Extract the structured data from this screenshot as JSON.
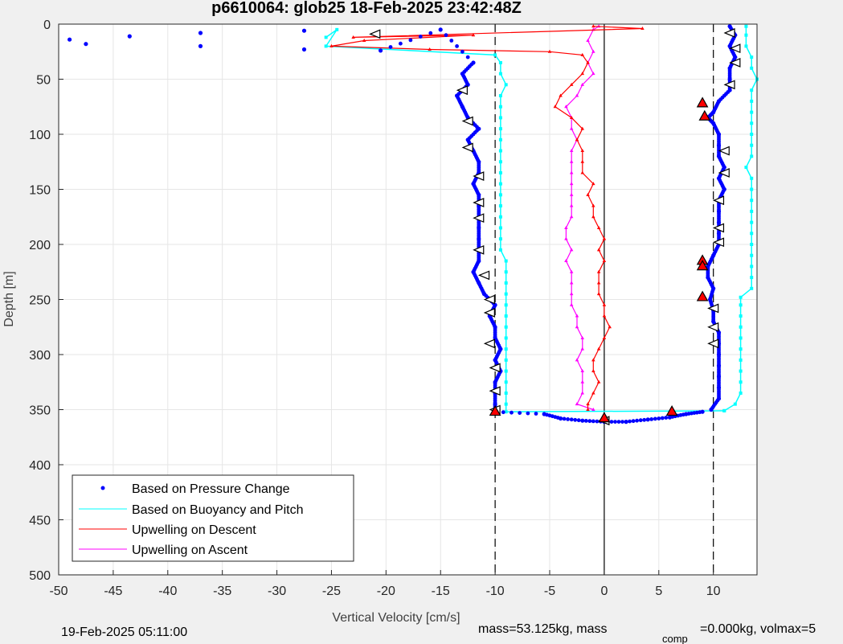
{
  "chart_data": {
    "type": "scatter",
    "title": "p6610064: glob25 18-Feb-2025 23:42:48Z",
    "xlabel": "Vertical Velocity [cm/s]",
    "ylabel": "Depth [m]",
    "xlim": [
      -50,
      14
    ],
    "ylim": [
      0,
      500
    ],
    "y_reversed": true,
    "grid": true,
    "x_ticks": [
      -50,
      -45,
      -40,
      -35,
      -30,
      -25,
      -20,
      -15,
      -10,
      -5,
      0,
      5,
      10
    ],
    "y_ticks": [
      0,
      50,
      100,
      150,
      200,
      250,
      300,
      350,
      400,
      450,
      500
    ],
    "reference_lines": [
      {
        "x": -10,
        "style": "dashed"
      },
      {
        "x": 10,
        "style": "dashed"
      },
      {
        "x": 0,
        "style": "solid"
      }
    ],
    "legend_position": "bottom-left",
    "series": [
      {
        "name": "Based on Pressure Change",
        "color": "#0000ff",
        "style": "points",
        "descent": [
          [
            -49,
            14
          ],
          [
            -47.5,
            18
          ],
          [
            -43.5,
            11
          ],
          [
            -37,
            8
          ],
          [
            -37,
            20
          ],
          [
            -27.5,
            6
          ],
          [
            -27.5,
            23
          ],
          [
            -20.5,
            24
          ],
          [
            -15,
            5
          ],
          [
            -12,
            35
          ],
          [
            -13,
            45
          ],
          [
            -12.5,
            55
          ],
          [
            -13.5,
            65
          ],
          [
            -13,
            75
          ],
          [
            -12.5,
            85
          ],
          [
            -11.5,
            95
          ],
          [
            -12.5,
            105
          ],
          [
            -12,
            115
          ],
          [
            -11.5,
            125
          ],
          [
            -11.5,
            135
          ],
          [
            -12,
            145
          ],
          [
            -11.5,
            155
          ],
          [
            -11.5,
            165
          ],
          [
            -11.5,
            175
          ],
          [
            -11.5,
            185
          ],
          [
            -11.5,
            195
          ],
          [
            -11.5,
            205
          ],
          [
            -11.5,
            215
          ],
          [
            -12,
            225
          ],
          [
            -11.5,
            235
          ],
          [
            -11,
            245
          ],
          [
            -10,
            255
          ],
          [
            -10.5,
            265
          ],
          [
            -10,
            275
          ],
          [
            -10,
            285
          ],
          [
            -9.5,
            295
          ],
          [
            -10,
            305
          ],
          [
            -9.5,
            315
          ],
          [
            -10,
            325
          ],
          [
            -10,
            335
          ],
          [
            -10,
            345
          ],
          [
            -10,
            352
          ],
          [
            -5.5,
            354
          ],
          [
            -4,
            358
          ],
          [
            -2,
            360
          ],
          [
            0,
            361
          ],
          [
            2,
            361
          ],
          [
            4,
            359
          ],
          [
            6,
            357
          ],
          [
            7.5,
            354
          ],
          [
            9,
            352
          ]
        ],
        "ascent": [
          [
            9.8,
            350
          ],
          [
            10.5,
            340
          ],
          [
            10.5,
            330
          ],
          [
            10.5,
            320
          ],
          [
            10.5,
            310
          ],
          [
            10.5,
            300
          ],
          [
            10.5,
            290
          ],
          [
            10.5,
            280
          ],
          [
            10,
            270
          ],
          [
            10,
            260
          ],
          [
            9.7,
            250
          ],
          [
            10,
            240
          ],
          [
            9.5,
            230
          ],
          [
            9.5,
            220
          ],
          [
            10,
            210
          ],
          [
            10.5,
            200
          ],
          [
            10.5,
            190
          ],
          [
            10.5,
            180
          ],
          [
            10.5,
            170
          ],
          [
            10.5,
            160
          ],
          [
            11,
            150
          ],
          [
            10.5,
            140
          ],
          [
            11,
            130
          ],
          [
            10.5,
            120
          ],
          [
            10.5,
            110
          ],
          [
            10.5,
            100
          ],
          [
            10,
            90
          ],
          [
            9.5,
            85
          ],
          [
            10,
            80
          ],
          [
            10.5,
            70
          ],
          [
            11.5,
            60
          ],
          [
            11.5,
            50
          ],
          [
            11.5,
            40
          ],
          [
            12,
            30
          ],
          [
            11.5,
            20
          ],
          [
            12,
            10
          ],
          [
            11.5,
            2
          ]
        ]
      },
      {
        "name": "Based on Buoyancy and Pitch",
        "color": "#00ffff",
        "style": "line",
        "descent": [
          [
            -25.5,
            12
          ],
          [
            -24.5,
            5
          ],
          [
            -25.5,
            20
          ],
          [
            -10,
            28
          ],
          [
            -9.5,
            35
          ],
          [
            -9.5,
            45
          ],
          [
            -9,
            55
          ],
          [
            -9.5,
            65
          ],
          [
            -9.5,
            75
          ],
          [
            -9.5,
            85
          ],
          [
            -9.5,
            95
          ],
          [
            -9.5,
            105
          ],
          [
            -9.5,
            115
          ],
          [
            -9.5,
            125
          ],
          [
            -9.5,
            135
          ],
          [
            -9.5,
            145
          ],
          [
            -9.5,
            155
          ],
          [
            -9.5,
            165
          ],
          [
            -9.5,
            175
          ],
          [
            -9.5,
            185
          ],
          [
            -9.5,
            195
          ],
          [
            -9.5,
            205
          ],
          [
            -9,
            215
          ],
          [
            -9,
            225
          ],
          [
            -9,
            235
          ],
          [
            -9,
            245
          ],
          [
            -9,
            255
          ],
          [
            -9,
            265
          ],
          [
            -9,
            275
          ],
          [
            -9,
            285
          ],
          [
            -9,
            295
          ],
          [
            -9,
            305
          ],
          [
            -9,
            315
          ],
          [
            -9,
            325
          ],
          [
            -9,
            335
          ],
          [
            -9,
            345
          ],
          [
            -9,
            352
          ],
          [
            11,
            351
          ]
        ],
        "ascent": [
          [
            11,
            351
          ],
          [
            12,
            345
          ],
          [
            12.5,
            335
          ],
          [
            12.5,
            325
          ],
          [
            12.5,
            315
          ],
          [
            12.5,
            305
          ],
          [
            12.5,
            295
          ],
          [
            12.5,
            285
          ],
          [
            12.5,
            275
          ],
          [
            12.5,
            265
          ],
          [
            12.5,
            255
          ],
          [
            12.5,
            248
          ],
          [
            13.5,
            240
          ],
          [
            13.5,
            230
          ],
          [
            13.5,
            220
          ],
          [
            13.5,
            210
          ],
          [
            13.5,
            200
          ],
          [
            13.5,
            190
          ],
          [
            13.5,
            180
          ],
          [
            13.5,
            170
          ],
          [
            13.5,
            160
          ],
          [
            13.5,
            150
          ],
          [
            13.5,
            140
          ],
          [
            13,
            130
          ],
          [
            13.5,
            120
          ],
          [
            13.5,
            110
          ],
          [
            13.5,
            100
          ],
          [
            13.5,
            90
          ],
          [
            13.5,
            80
          ],
          [
            13.5,
            70
          ],
          [
            13.5,
            60
          ],
          [
            14,
            50
          ],
          [
            13.5,
            40
          ],
          [
            13.5,
            30
          ],
          [
            13,
            20
          ],
          [
            13,
            10
          ],
          [
            13,
            2
          ]
        ]
      },
      {
        "name": "Upwelling on Descent",
        "color": "#ff0000",
        "style": "line-triangles",
        "points": [
          [
            -1,
            2
          ],
          [
            3.5,
            4
          ],
          [
            -23,
            12
          ],
          [
            -12,
            10
          ],
          [
            -22,
            15
          ],
          [
            -25,
            20
          ],
          [
            -16,
            23
          ],
          [
            -5,
            25
          ],
          [
            -2,
            28
          ],
          [
            -1.5,
            35
          ],
          [
            -2,
            45
          ],
          [
            -3,
            55
          ],
          [
            -4,
            65
          ],
          [
            -4.5,
            75
          ],
          [
            -3,
            85
          ],
          [
            -2,
            95
          ],
          [
            -2.5,
            105
          ],
          [
            -2,
            115
          ],
          [
            -2,
            125
          ],
          [
            -2,
            135
          ],
          [
            -1,
            145
          ],
          [
            -1.5,
            155
          ],
          [
            -1,
            165
          ],
          [
            -1,
            175
          ],
          [
            -0.5,
            185
          ],
          [
            0,
            195
          ],
          [
            -0.5,
            205
          ],
          [
            0,
            215
          ],
          [
            -0.5,
            225
          ],
          [
            -0.5,
            235
          ],
          [
            -0.5,
            245
          ],
          [
            0,
            255
          ],
          [
            0,
            265
          ],
          [
            0.5,
            275
          ],
          [
            0,
            285
          ],
          [
            -0.5,
            295
          ],
          [
            -1,
            305
          ],
          [
            -1,
            315
          ],
          [
            -0.5,
            325
          ],
          [
            -1,
            335
          ],
          [
            -1.5,
            345
          ],
          [
            -1.5,
            350
          ]
        ]
      },
      {
        "name": "Upwelling on Ascent",
        "color": "#ff00ff",
        "style": "line-triangles",
        "points": [
          [
            -1,
            350
          ],
          [
            -2.5,
            345
          ],
          [
            -2,
            335
          ],
          [
            -2,
            325
          ],
          [
            -2,
            315
          ],
          [
            -2.5,
            305
          ],
          [
            -2,
            295
          ],
          [
            -2,
            285
          ],
          [
            -2.5,
            275
          ],
          [
            -2.5,
            265
          ],
          [
            -3,
            255
          ],
          [
            -3,
            245
          ],
          [
            -3,
            235
          ],
          [
            -3,
            225
          ],
          [
            -3.5,
            215
          ],
          [
            -3,
            205
          ],
          [
            -3.5,
            195
          ],
          [
            -3.5,
            185
          ],
          [
            -3,
            175
          ],
          [
            -3,
            165
          ],
          [
            -3,
            155
          ],
          [
            -3,
            145
          ],
          [
            -3,
            135
          ],
          [
            -3,
            125
          ],
          [
            -3,
            115
          ],
          [
            -2.5,
            105
          ],
          [
            -3,
            95
          ],
          [
            -3,
            85
          ],
          [
            -3.5,
            75
          ],
          [
            -2.5,
            65
          ],
          [
            -2,
            55
          ],
          [
            -1,
            45
          ],
          [
            -1.5,
            35
          ],
          [
            -1,
            25
          ],
          [
            -1.5,
            15
          ],
          [
            -1,
            5
          ],
          [
            -0.5,
            2
          ]
        ]
      }
    ],
    "markers": {
      "open_triangles": [
        [
          -21,
          9
        ],
        [
          -13,
          60
        ],
        [
          -12.5,
          88
        ],
        [
          -12.5,
          112
        ],
        [
          -11.5,
          138
        ],
        [
          -11.5,
          162
        ],
        [
          -11.5,
          176
        ],
        [
          -11.5,
          205
        ],
        [
          -11,
          228
        ],
        [
          -10.5,
          250
        ],
        [
          -10.5,
          262
        ],
        [
          -10.5,
          290
        ],
        [
          -10,
          312
        ],
        [
          -10,
          333
        ],
        [
          -10,
          350
        ],
        [
          0,
          360
        ],
        [
          11.5,
          8
        ],
        [
          12,
          22
        ],
        [
          12,
          35
        ],
        [
          11.5,
          55
        ],
        [
          11,
          115
        ],
        [
          11,
          135
        ],
        [
          10.5,
          160
        ],
        [
          10.5,
          185
        ],
        [
          10.5,
          198
        ],
        [
          10,
          258
        ],
        [
          10,
          275
        ],
        [
          10,
          290
        ]
      ],
      "red_triangles": [
        [
          -10,
          352
        ],
        [
          0,
          358
        ],
        [
          6.2,
          352
        ],
        [
          9,
          72
        ],
        [
          9.2,
          84
        ],
        [
          9,
          215
        ],
        [
          9,
          220
        ],
        [
          9,
          248
        ]
      ]
    }
  },
  "footer": {
    "timestamp": "19-Feb-2025 05:11:00",
    "mass_text": "mass=53.125kg, mass",
    "mass_sub": "comp",
    "mass_tail": "=0.000kg, volmax=5"
  }
}
